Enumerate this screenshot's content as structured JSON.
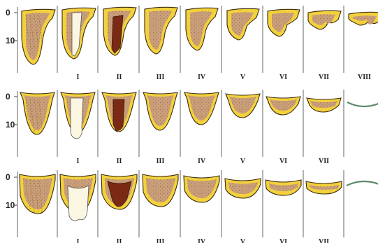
{
  "stages": [
    "I",
    "II",
    "III",
    "IV",
    "V",
    "VI",
    "VII",
    "VIII"
  ],
  "y_ticks": [
    "0",
    "10"
  ],
  "colors": {
    "bone": "#f2d13c",
    "cancellous": "#c9a07a",
    "socket": "#7a2a14",
    "tooth": "#fbf6e2",
    "cortex": "#5b8a6a"
  }
}
